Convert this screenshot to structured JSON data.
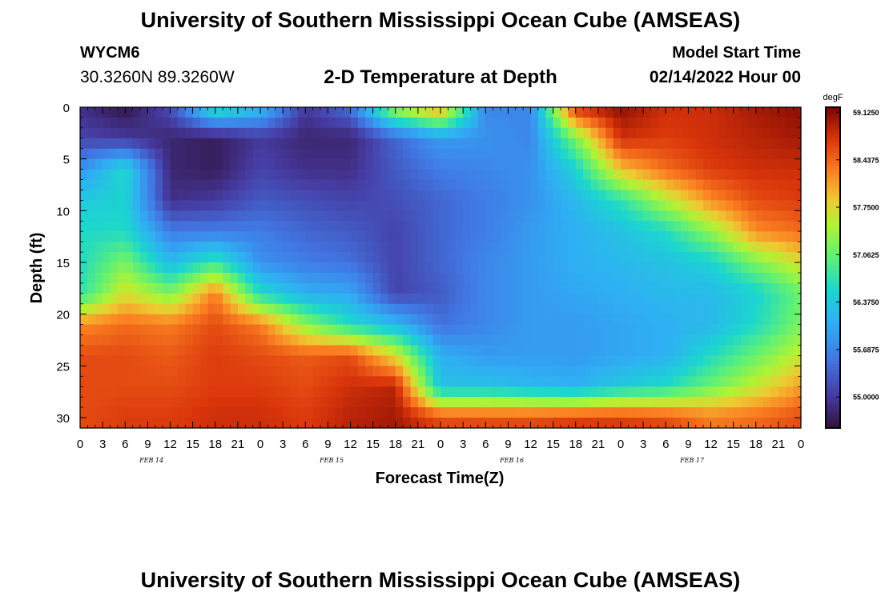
{
  "page": {
    "title": "University of Southern Mississippi Ocean Cube (AMSEAS)",
    "title_repeat": "University of Southern Mississippi Ocean Cube (AMSEAS)",
    "station_id": "WYCM6",
    "coordinates": "30.3260N  89.3260W",
    "subtitle": "2-D Temperature at Depth",
    "model_start_label": "Model Start Time",
    "model_start_value": "02/14/2022 Hour 00"
  },
  "chart_data": {
    "type": "heatmap",
    "title": "2-D Temperature at Depth",
    "xlabel": "Forecast Time(Z)",
    "ylabel": "Depth (ft)",
    "x_tick_labels": [
      "0",
      "3",
      "6",
      "9",
      "12",
      "15",
      "18",
      "21",
      "0",
      "3",
      "6",
      "9",
      "12",
      "15",
      "18",
      "21",
      "0",
      "3",
      "6",
      "9",
      "12",
      "15",
      "18",
      "21",
      "0",
      "3",
      "6",
      "9",
      "12",
      "15",
      "18",
      "21",
      "0"
    ],
    "x_date_labels": [
      "FEB 14",
      "FEB 15",
      "FEB 16",
      "FEB 17"
    ],
    "xlim_hours": [
      0,
      96
    ],
    "ylim_ft": [
      0,
      31
    ],
    "y_ticks": [
      0,
      5,
      10,
      15,
      20,
      25,
      30
    ],
    "y_inverted": true,
    "colorbar": {
      "unit": "degF",
      "tick_labels": [
        "59.1250",
        "58.4375",
        "57.7500",
        "57.0625",
        "56.3750",
        "55.6875",
        "55.0000"
      ],
      "min": 54.55,
      "max": 59.2
    },
    "profile_times_h": [
      0,
      6,
      12,
      18,
      24,
      30,
      36,
      42,
      48,
      54,
      60,
      66,
      72,
      78,
      84,
      90,
      96
    ],
    "profile_depths_ft": [
      0,
      3,
      6,
      9,
      12,
      15,
      18,
      21,
      24,
      27,
      30
    ],
    "temperature_degF": [
      [
        54.9,
        55.1,
        55.8,
        56.4,
        56.6,
        56.6,
        56.7,
        58.2,
        58.6,
        58.6,
        58.6
      ],
      [
        54.6,
        55.0,
        56.6,
        56.5,
        56.6,
        57.2,
        57.7,
        58.4,
        58.6,
        58.6,
        58.7
      ],
      [
        55.2,
        54.8,
        54.8,
        54.9,
        55.6,
        56.2,
        57.2,
        58.3,
        58.5,
        58.6,
        58.7
      ],
      [
        56.8,
        54.7,
        54.7,
        55.0,
        55.6,
        56.8,
        58.3,
        58.6,
        58.7,
        58.7,
        58.8
      ],
      [
        56.3,
        55.0,
        55.1,
        55.3,
        55.6,
        55.8,
        56.6,
        58.3,
        58.6,
        58.7,
        58.8
      ],
      [
        55.0,
        54.8,
        54.9,
        55.2,
        55.4,
        55.6,
        56.1,
        57.3,
        58.5,
        58.6,
        58.7
      ],
      [
        55.5,
        54.8,
        54.9,
        55.1,
        55.3,
        55.5,
        56.0,
        56.6,
        58.6,
        58.8,
        58.9
      ],
      [
        57.5,
        55.4,
        55.3,
        55.2,
        55.1,
        55.1,
        55.1,
        56.2,
        57.7,
        58.9,
        59.0
      ],
      [
        58.2,
        55.9,
        55.6,
        55.4,
        55.4,
        55.4,
        55.3,
        55.5,
        56.1,
        56.3,
        58.6
      ],
      [
        55.7,
        55.8,
        55.7,
        55.6,
        55.6,
        55.7,
        55.7,
        55.7,
        55.9,
        56.3,
        58.6
      ],
      [
        55.7,
        55.7,
        55.8,
        55.8,
        55.9,
        55.9,
        55.9,
        55.9,
        55.9,
        56.2,
        58.6
      ],
      [
        58.8,
        57.2,
        56.5,
        56.2,
        56.1,
        56.1,
        56.0,
        55.9,
        55.9,
        56.1,
        58.7
      ],
      [
        59.1,
        58.8,
        57.9,
        56.7,
        56.3,
        56.2,
        56.1,
        56.0,
        56.0,
        56.4,
        58.7
      ],
      [
        58.8,
        58.7,
        58.4,
        57.5,
        56.6,
        56.3,
        56.2,
        56.1,
        56.1,
        56.6,
        58.6
      ],
      [
        58.8,
        58.8,
        58.7,
        58.2,
        57.3,
        56.5,
        56.2,
        56.2,
        56.6,
        57.1,
        58.3
      ],
      [
        59.0,
        58.9,
        58.8,
        58.6,
        58.2,
        57.2,
        56.5,
        56.6,
        57.1,
        57.6,
        58.4
      ],
      [
        59.1,
        59.0,
        58.8,
        58.7,
        58.4,
        57.7,
        57.1,
        57.2,
        57.6,
        58.1,
        58.6
      ]
    ]
  }
}
